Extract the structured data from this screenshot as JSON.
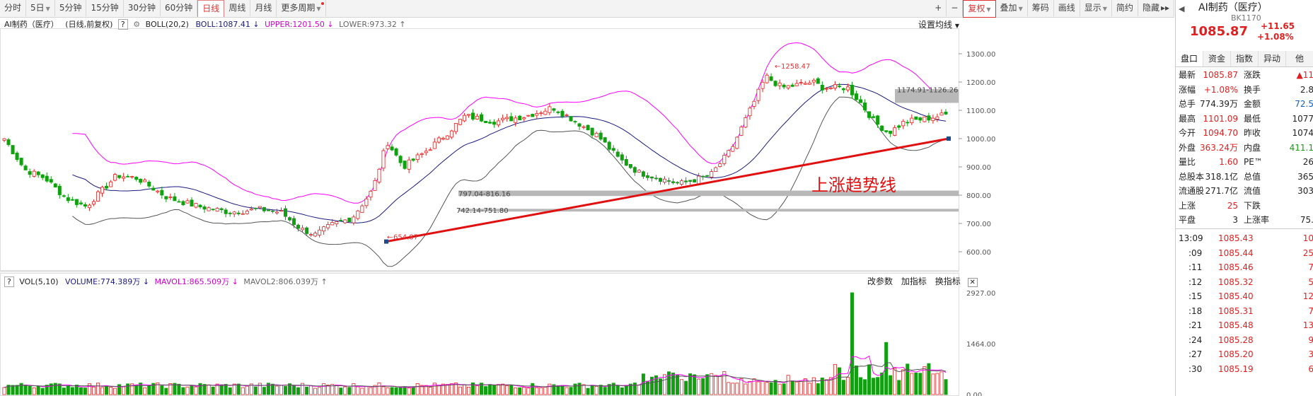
{
  "toolbar": {
    "left_buttons": [
      "分时",
      "5日",
      "5分钟",
      "15分钟",
      "30分钟",
      "60分钟",
      "日线",
      "周线",
      "月线",
      "更多周期"
    ],
    "active_label": "日线",
    "right_buttons": [
      "+",
      "−",
      "复权",
      "叠加",
      "筹码",
      "画线",
      "显示",
      "简约",
      "隐藏"
    ],
    "right_arrows": "▸▸"
  },
  "indicator_bar": {
    "name": "AI制药（医疗）",
    "period": "(日线,前复权)",
    "question": "?",
    "boll_label": "BOLL(20,2)",
    "boll_value": "BOLL:1087.41",
    "upper_value": "UPPER:1201.50",
    "lower_value": "LOWER:973.32",
    "settings": "设置均线"
  },
  "price_axis": [
    "1300.00",
    "1200.00",
    "1100.00",
    "1000.00",
    "900.00",
    "800.00",
    "700.00",
    "600.00"
  ],
  "annotations": {
    "high": "1258.47",
    "low": "654.87",
    "zone1": "1174.91-1126.26",
    "zone2": "797.04-816.16",
    "zone3": "742.14-751.80",
    "trend_label": "上涨趋势线"
  },
  "volume_bar": {
    "name": "VOL(5,10)",
    "volume": "VOLUME:774.389万",
    "mavol1": "MAVOL1:865.509万",
    "mavol2": "MAVOL2:806.039万",
    "btn1": "改参数",
    "btn2": "加指标",
    "btn3": "换指标",
    "close": "✕"
  },
  "volume_axis": [
    "2927.00",
    "1464.00",
    "0.00"
  ],
  "quote": {
    "title": "AI制药（医疗）",
    "code": "BK1170",
    "price": "1085.87",
    "change": "+11.65",
    "change_pct": "+1.08%",
    "tabs": [
      "盘口",
      "资金",
      "指数",
      "异动",
      "他"
    ],
    "rows": [
      {
        "l1": "最新",
        "v1": "1085.87",
        "c1": "red",
        "l2": "涨跌",
        "v2": "▲11"
      },
      {
        "l1": "涨幅",
        "v1": "+1.08%",
        "c1": "red",
        "l2": "换手",
        "v2": "2.8"
      },
      {
        "l1": "总手",
        "v1": "774.39万",
        "c1": "",
        "l2": "金额",
        "v2": "72.5"
      },
      {
        "l1": "最高",
        "v1": "1101.09",
        "c1": "red",
        "l2": "最低",
        "v2": "1077"
      },
      {
        "l1": "今开",
        "v1": "1094.70",
        "c1": "red",
        "l2": "昨收",
        "v2": "1074"
      },
      {
        "l1": "外盘",
        "v1": "363.24万",
        "c1": "red",
        "l2": "内盘",
        "v2": "411.1"
      },
      {
        "l1": "量比",
        "v1": "1.60",
        "c1": "red",
        "l2": "PE™",
        "v2": "26"
      },
      {
        "l1": "总股本",
        "v1": "318.1亿",
        "c1": "",
        "l2": "总值",
        "v2": "365"
      },
      {
        "l1": "流通股",
        "v1": "271.7亿",
        "c1": "",
        "l2": "流值",
        "v2": "303"
      },
      {
        "l1": "上涨",
        "v1": "25",
        "c1": "red",
        "l2": "下跌",
        "v2": ""
      },
      {
        "l1": "平盘",
        "v1": "3",
        "c1": "",
        "l2": "上涨率",
        "v2": "75."
      }
    ],
    "ticks": [
      {
        "t": "13:09",
        "p": "1085.43",
        "v": "10"
      },
      {
        "t": ":09",
        "p": "1085.44",
        "v": "25"
      },
      {
        "t": ":11",
        "p": "1085.46",
        "v": "7"
      },
      {
        "t": ":12",
        "p": "1085.32",
        "v": "5"
      },
      {
        "t": ":15",
        "p": "1085.40",
        "v": "12"
      },
      {
        "t": ":18",
        "p": "1085.31",
        "v": "7"
      },
      {
        "t": ":21",
        "p": "1085.48",
        "v": "13"
      },
      {
        "t": ":24",
        "p": "1085.28",
        "v": "9"
      },
      {
        "t": ":27",
        "p": "1085.20",
        "v": "3"
      },
      {
        "t": ":30",
        "p": "1085.19",
        "v": "6"
      }
    ]
  },
  "colors": {
    "up": "#e02020",
    "down": "#10a010",
    "upper": "#ff00ff",
    "mid": "#1a1a80",
    "lower": "#555555",
    "trend": "#e01010"
  }
}
